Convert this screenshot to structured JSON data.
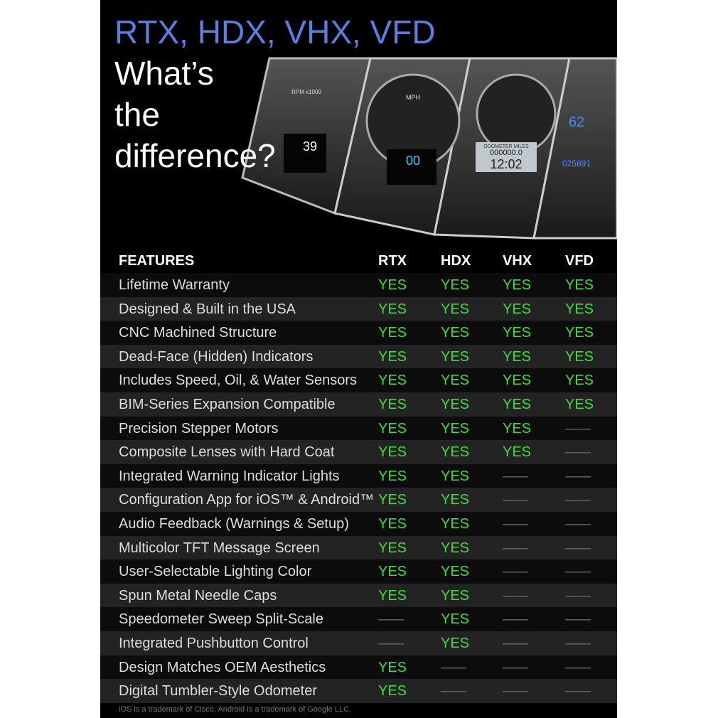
{
  "header": {
    "title": "RTX, HDX, VHX, VFD",
    "subtitle_lines": [
      "What’s",
      "the",
      "difference?"
    ],
    "gauge_texts": {
      "rpm": "RPM x1000",
      "mph": "MPH",
      "speed": "39",
      "hdx_speed": "00",
      "vhx_label": "ODOMETER MILES",
      "vhx_odo": "000000.0",
      "vhx_clock": "12:02",
      "vfd_speed": "62",
      "vfd_odo": "025891"
    }
  },
  "table": {
    "columns": [
      "FEATURES",
      "RTX",
      "HDX",
      "VHX",
      "VFD"
    ],
    "rows": [
      [
        "Lifetime Warranty",
        "YES",
        "YES",
        "YES",
        "YES"
      ],
      [
        "Designed & Built in the USA",
        "YES",
        "YES",
        "YES",
        "YES"
      ],
      [
        "CNC Machined Structure",
        "YES",
        "YES",
        "YES",
        "YES"
      ],
      [
        "Dead-Face (Hidden) Indicators",
        "YES",
        "YES",
        "YES",
        "YES"
      ],
      [
        "Includes Speed, Oil, & Water Sensors",
        "YES",
        "YES",
        "YES",
        "YES"
      ],
      [
        "BIM-Series Expansion Compatible",
        "YES",
        "YES",
        "YES",
        "YES"
      ],
      [
        "Precision Stepper Motors",
        "YES",
        "YES",
        "YES",
        "—"
      ],
      [
        "Composite Lenses with Hard Coat",
        "YES",
        "YES",
        "YES",
        "—"
      ],
      [
        "Integrated Warning Indicator Lights",
        "YES",
        "YES",
        "—",
        "—"
      ],
      [
        "Configuration App for iOS™ & Android™",
        "YES",
        "YES",
        "—",
        "—"
      ],
      [
        "Audio Feedback (Warnings & Setup)",
        "YES",
        "YES",
        "—",
        "—"
      ],
      [
        "Multicolor TFT Message Screen",
        "YES",
        "YES",
        "—",
        "—"
      ],
      [
        "User-Selectable Lighting Color",
        "YES",
        "YES",
        "—",
        "—"
      ],
      [
        "Spun Metal Needle Caps",
        "YES",
        "YES",
        "—",
        "—"
      ],
      [
        "Speedometer Sweep Split-Scale",
        "—",
        "YES",
        "—",
        "—"
      ],
      [
        "Integrated Pushbutton Control",
        "—",
        "YES",
        "—",
        "—"
      ],
      [
        "Design Matches OEM Aesthetics",
        "YES",
        "—",
        "—",
        "—"
      ],
      [
        "Digital Tumbler-Style Odometer",
        "YES",
        "—",
        "—",
        "—"
      ]
    ]
  },
  "footnote": "iOS is a trademark of Cisco. Android is a trademark of Google LLC."
}
